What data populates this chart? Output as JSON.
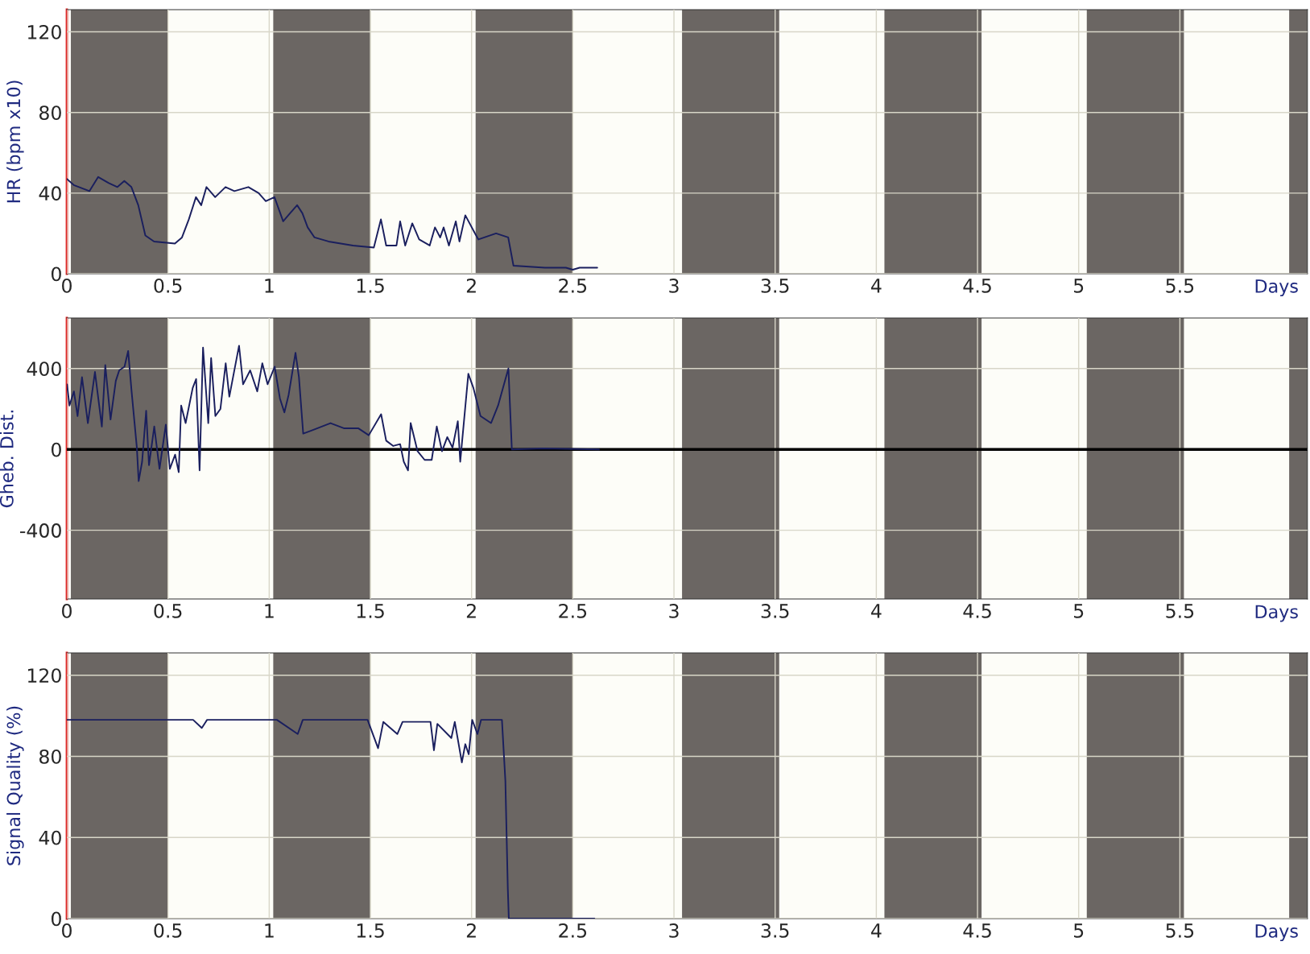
{
  "chart_data": [
    {
      "type": "line",
      "xlabel": "Days",
      "ylabel": "HR (bpm x10)",
      "xlim": [
        0,
        6.13
      ],
      "ylim": [
        0,
        131
      ],
      "xticks": [
        0,
        0.5,
        1,
        1.5,
        2,
        2.5,
        3,
        3.5,
        4,
        4.5,
        5,
        5.5
      ],
      "yticks": [
        0,
        40,
        80,
        120
      ],
      "grid": true,
      "bands": [
        {
          "axis": "x",
          "from": 0.02,
          "to": 0.5,
          "color": "#6b6663"
        },
        {
          "axis": "x",
          "from": 1.02,
          "to": 1.5,
          "color": "#6b6663"
        },
        {
          "axis": "x",
          "from": 2.02,
          "to": 2.5,
          "color": "#6b6663"
        },
        {
          "axis": "x",
          "from": 3.04,
          "to": 3.52,
          "color": "#6b6663"
        },
        {
          "axis": "x",
          "from": 4.04,
          "to": 4.52,
          "color": "#6b6663"
        },
        {
          "axis": "x",
          "from": 5.04,
          "to": 5.52,
          "color": "#6b6663"
        },
        {
          "axis": "x",
          "from": 6.04,
          "to": 6.13,
          "color": "#6b6663"
        }
      ],
      "series": [
        {
          "color": "#1a1f5e",
          "x": [
            0,
            0.034,
            0.112,
            0.155,
            0.207,
            0.25,
            0.284,
            0.319,
            0.353,
            0.388,
            0.431,
            0.534,
            0.569,
            0.603,
            0.638,
            0.664,
            0.69,
            0.733,
            0.784,
            0.828,
            0.897,
            0.948,
            0.983,
            1.026,
            1.069,
            1.103,
            1.138,
            1.164,
            1.19,
            1.224,
            1.293,
            1.414,
            1.517,
            1.552,
            1.578,
            1.629,
            1.647,
            1.672,
            1.707,
            1.741,
            1.793,
            1.819,
            1.845,
            1.862,
            1.888,
            1.922,
            1.94,
            1.969,
            2.017,
            2.034,
            2.121,
            2.181,
            2.207,
            2.362,
            2.466,
            2.5,
            2.534,
            2.621
          ],
          "values": [
            47,
            44,
            41,
            48,
            45,
            43,
            46,
            43,
            34,
            19,
            16,
            15,
            18,
            27,
            38,
            34,
            43,
            38,
            43,
            41,
            43,
            40,
            36,
            38,
            26,
            30,
            34,
            30,
            23,
            18,
            16,
            14,
            13,
            27,
            14,
            14,
            26,
            14,
            25,
            17,
            14,
            23,
            18,
            23,
            14,
            26,
            16,
            29,
            20,
            17,
            20,
            18,
            4,
            3,
            3,
            2,
            3,
            3
          ]
        }
      ]
    },
    {
      "type": "line",
      "xlabel": "Days",
      "ylabel": "Gheb. Dist.",
      "xlim": [
        0,
        6.13
      ],
      "ylim": [
        -740,
        650
      ],
      "xticks": [
        0,
        0.5,
        1,
        1.5,
        2,
        2.5,
        3,
        3.5,
        4,
        4.5,
        5,
        5.5
      ],
      "yticks": [
        -400,
        0,
        400
      ],
      "grid": true,
      "ref_lines": [
        {
          "axis": "y",
          "value": 0,
          "color": "#000000"
        }
      ],
      "bands": [
        {
          "axis": "x",
          "from": 0.02,
          "to": 0.5,
          "color": "#6b6663"
        },
        {
          "axis": "x",
          "from": 1.02,
          "to": 1.5,
          "color": "#6b6663"
        },
        {
          "axis": "x",
          "from": 2.02,
          "to": 2.5,
          "color": "#6b6663"
        },
        {
          "axis": "x",
          "from": 3.04,
          "to": 3.52,
          "color": "#6b6663"
        },
        {
          "axis": "x",
          "from": 4.04,
          "to": 4.52,
          "color": "#6b6663"
        },
        {
          "axis": "x",
          "from": 5.04,
          "to": 5.52,
          "color": "#6b6663"
        },
        {
          "axis": "x",
          "from": 6.04,
          "to": 6.13,
          "color": "#6b6663"
        }
      ],
      "series": [
        {
          "color": "#1a1f5e",
          "x": [
            0.001,
            0.013,
            0.035,
            0.053,
            0.075,
            0.104,
            0.139,
            0.173,
            0.19,
            0.216,
            0.242,
            0.259,
            0.285,
            0.303,
            0.32,
            0.346,
            0.355,
            0.372,
            0.392,
            0.406,
            0.432,
            0.458,
            0.489,
            0.509,
            0.535,
            0.553,
            0.565,
            0.587,
            0.622,
            0.639,
            0.656,
            0.673,
            0.699,
            0.713,
            0.734,
            0.759,
            0.785,
            0.803,
            0.851,
            0.871,
            0.906,
            0.941,
            0.966,
            0.992,
            1.027,
            1.053,
            1.075,
            1.096,
            1.13,
            1.147,
            1.168,
            1.216,
            1.303,
            1.371,
            1.441,
            1.492,
            1.553,
            1.578,
            1.613,
            1.647,
            1.665,
            1.686,
            1.699,
            1.733,
            1.768,
            1.803,
            1.828,
            1.854,
            1.88,
            1.906,
            1.932,
            1.944,
            1.984,
            2.009,
            2.044,
            2.096,
            2.131,
            2.165,
            2.182,
            2.199,
            2.354,
            2.63
          ],
          "values": [
            322,
            217,
            287,
            165,
            357,
            130,
            383,
            113,
            417,
            148,
            339,
            391,
            409,
            487,
            287,
            9,
            -157,
            -61,
            191,
            -78,
            113,
            -96,
            122,
            -96,
            -26,
            -113,
            217,
            130,
            304,
            348,
            -104,
            504,
            130,
            452,
            165,
            200,
            426,
            261,
            513,
            322,
            391,
            287,
            426,
            322,
            409,
            252,
            183,
            270,
            478,
            357,
            78,
            96,
            130,
            104,
            104,
            70,
            174,
            43,
            17,
            26,
            -61,
            -104,
            130,
            -9,
            -52,
            -52,
            113,
            -9,
            61,
            9,
            139,
            -61,
            374,
            304,
            165,
            130,
            217,
            339,
            400,
            0,
            5,
            0
          ]
        }
      ]
    },
    {
      "type": "line",
      "xlabel": "Days",
      "ylabel": "Signal Quality (%)",
      "xlim": [
        0,
        6.13
      ],
      "ylim": [
        0,
        131
      ],
      "xticks": [
        0,
        0.5,
        1,
        1.5,
        2,
        2.5,
        3,
        3.5,
        4,
        4.5,
        5,
        5.5
      ],
      "yticks": [
        0,
        40,
        80,
        120
      ],
      "grid": true,
      "bands": [
        {
          "axis": "x",
          "from": 0.02,
          "to": 0.5,
          "color": "#6b6663"
        },
        {
          "axis": "x",
          "from": 1.02,
          "to": 1.5,
          "color": "#6b6663"
        },
        {
          "axis": "x",
          "from": 2.02,
          "to": 2.5,
          "color": "#6b6663"
        },
        {
          "axis": "x",
          "from": 3.04,
          "to": 3.52,
          "color": "#6b6663"
        },
        {
          "axis": "x",
          "from": 4.04,
          "to": 4.52,
          "color": "#6b6663"
        },
        {
          "axis": "x",
          "from": 5.04,
          "to": 5.52,
          "color": "#6b6663"
        },
        {
          "axis": "x",
          "from": 6.04,
          "to": 6.13,
          "color": "#6b6663"
        }
      ],
      "series": [
        {
          "color": "#1a1f5e",
          "x": [
            0,
            0.624,
            0.667,
            0.693,
            1.038,
            1.141,
            1.166,
            1.486,
            1.538,
            1.564,
            1.633,
            1.659,
            1.797,
            1.814,
            1.831,
            1.9,
            1.917,
            1.952,
            1.969,
            1.986,
            2.003,
            2.029,
            2.047,
            2.15,
            2.167,
            2.179,
            2.184,
            2.607
          ],
          "values": [
            98,
            98,
            94,
            98,
            98,
            91,
            98,
            98,
            84,
            97,
            91,
            97,
            97,
            83,
            96,
            89,
            97,
            77,
            86,
            81,
            98,
            91,
            98,
            98,
            68,
            15,
            0,
            0
          ]
        }
      ]
    }
  ]
}
